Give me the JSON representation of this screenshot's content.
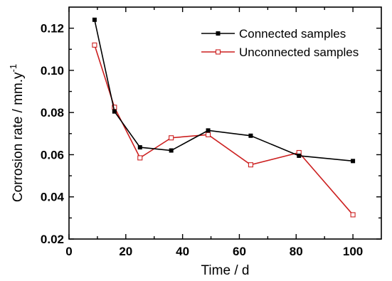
{
  "chart_data": {
    "type": "line",
    "title": "",
    "xlabel": "Time / d",
    "ylabel": "Corrosion rate / mm.y",
    "ylabel_superscript": "-1",
    "xlim": [
      0,
      110
    ],
    "ylim": [
      0.02,
      0.13
    ],
    "x_ticks": [
      "0",
      "20",
      "40",
      "60",
      "80",
      "100"
    ],
    "y_ticks": [
      "0.02",
      "0.04",
      "0.06",
      "0.08",
      "0.10",
      "0.12"
    ],
    "x_tick_values": [
      0,
      20,
      40,
      60,
      80,
      100
    ],
    "y_tick_values": [
      0.02,
      0.04,
      0.06,
      0.08,
      0.1,
      0.12
    ],
    "grid": false,
    "legend_position": "top-right",
    "series": [
      {
        "name": "Connected samples",
        "color": "#000000",
        "marker": "filled-square",
        "x": [
          9,
          16,
          25,
          36,
          49,
          64,
          81,
          100
        ],
        "y": [
          0.124,
          0.0805,
          0.0635,
          0.062,
          0.0715,
          0.069,
          0.0595,
          0.057
        ]
      },
      {
        "name": "Unconnected samples",
        "color": "#cc1f1f",
        "marker": "open-square",
        "x": [
          9,
          16,
          25,
          36,
          49,
          64,
          81,
          100
        ],
        "y": [
          0.112,
          0.0825,
          0.0585,
          0.068,
          0.0695,
          0.0552,
          0.061,
          0.0315
        ]
      }
    ]
  }
}
